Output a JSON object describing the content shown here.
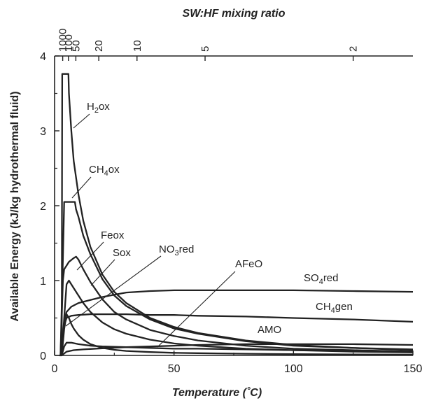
{
  "chart_data": {
    "type": "line",
    "xlabel": "Temperature (˚C)",
    "ylabel": "Available Energy (kJ/kg hydrothermal fluid)",
    "top_axis_label": "SW:HF mixing ratio",
    "xlim": [
      0,
      150
    ],
    "ylim": [
      0,
      4
    ],
    "x_ticks": [
      0,
      50,
      100,
      150
    ],
    "y_ticks": [
      0,
      1,
      2,
      3,
      4
    ],
    "top_ticks": [
      {
        "label": "1000",
        "temperature": 3.4
      },
      {
        "label": "100",
        "temperature": 5.8
      },
      {
        "label": "50",
        "temperature": 8.9
      },
      {
        "label": "20",
        "temperature": 18.5
      },
      {
        "label": "10",
        "temperature": 34.5
      },
      {
        "label": "5",
        "temperature": 63.0
      },
      {
        "label": "2",
        "temperature": 125.0
      }
    ],
    "grid": false,
    "series": [
      {
        "name": "H2ox",
        "x": [
          2,
          3,
          3.2,
          5.8,
          6,
          7,
          8,
          10,
          12,
          15,
          20,
          25,
          30,
          40,
          50,
          60,
          80,
          100,
          125,
          150
        ],
        "y": [
          0,
          0,
          3.76,
          3.76,
          3.5,
          3.0,
          2.6,
          2.15,
          1.8,
          1.45,
          1.08,
          0.85,
          0.7,
          0.5,
          0.38,
          0.3,
          0.2,
          0.14,
          0.1,
          0.08
        ]
      },
      {
        "name": "CH4ox",
        "x": [
          2.5,
          3.5,
          4,
          8.5,
          9,
          10,
          12,
          15,
          20,
          25,
          30,
          40,
          50,
          60,
          80,
          100,
          125,
          150
        ],
        "y": [
          0,
          1.3,
          2.05,
          2.05,
          1.95,
          1.85,
          1.6,
          1.35,
          1.02,
          0.8,
          0.66,
          0.48,
          0.36,
          0.29,
          0.19,
          0.13,
          0.1,
          0.07
        ]
      },
      {
        "name": "Feox",
        "x": [
          2.5,
          3.5,
          4,
          5,
          6,
          8,
          9,
          10,
          12,
          15,
          20,
          25,
          30,
          40,
          50,
          60,
          80,
          100,
          125,
          150
        ],
        "y": [
          0,
          1.0,
          1.15,
          1.2,
          1.25,
          1.3,
          1.32,
          1.28,
          1.15,
          0.98,
          0.75,
          0.58,
          0.48,
          0.34,
          0.26,
          0.2,
          0.13,
          0.09,
          0.07,
          0.05
        ]
      },
      {
        "name": "Sox",
        "x": [
          3,
          4,
          5,
          6,
          7,
          8,
          10,
          12,
          15,
          20,
          25,
          30,
          40,
          50,
          60,
          80,
          100,
          125,
          150
        ],
        "y": [
          0,
          0.5,
          0.95,
          1.0,
          0.95,
          0.9,
          0.8,
          0.7,
          0.58,
          0.44,
          0.35,
          0.29,
          0.21,
          0.16,
          0.13,
          0.09,
          0.07,
          0.05,
          0.04
        ]
      },
      {
        "name": "NO3red",
        "x": [
          3,
          4,
          5,
          6,
          7,
          8,
          10,
          12,
          15,
          20,
          25,
          30,
          40,
          50,
          60,
          80,
          100,
          125,
          150
        ],
        "y": [
          0,
          0.35,
          0.55,
          0.5,
          0.42,
          0.36,
          0.27,
          0.21,
          0.15,
          0.1,
          0.075,
          0.06,
          0.045,
          0.035,
          0.03,
          0.022,
          0.017,
          0.013,
          0.01
        ]
      },
      {
        "name": "AFeO",
        "x": [
          3,
          5,
          8,
          12,
          20,
          30,
          40,
          50,
          60,
          80,
          100,
          125,
          150
        ],
        "y": [
          0,
          0.05,
          0.07,
          0.08,
          0.095,
          0.11,
          0.12,
          0.13,
          0.14,
          0.15,
          0.15,
          0.15,
          0.14
        ]
      },
      {
        "name": "SO4red",
        "x": [
          3,
          4,
          5,
          7,
          10,
          15,
          20,
          25,
          30,
          40,
          50,
          60,
          80,
          100,
          125,
          150
        ],
        "y": [
          0,
          0.45,
          0.58,
          0.65,
          0.7,
          0.74,
          0.78,
          0.81,
          0.84,
          0.86,
          0.87,
          0.87,
          0.87,
          0.87,
          0.86,
          0.85
        ]
      },
      {
        "name": "CH4gen",
        "x": [
          3,
          4,
          5,
          7,
          10,
          15,
          20,
          30,
          40,
          50,
          60,
          80,
          100,
          125,
          150
        ],
        "y": [
          0,
          0.4,
          0.5,
          0.53,
          0.54,
          0.55,
          0.55,
          0.55,
          0.54,
          0.54,
          0.53,
          0.52,
          0.5,
          0.48,
          0.45
        ]
      },
      {
        "name": "AMO",
        "x": [
          3,
          4,
          5,
          7,
          10,
          15,
          20,
          30,
          40,
          50,
          60,
          80,
          100,
          125,
          150
        ],
        "y": [
          0,
          0.12,
          0.17,
          0.17,
          0.15,
          0.13,
          0.12,
          0.11,
          0.1,
          0.09,
          0.09,
          0.08,
          0.07,
          0.06,
          0.05
        ]
      }
    ],
    "annotations": [
      {
        "main": "H",
        "sub": "2",
        "rest": "ox"
      },
      {
        "main": "CH",
        "sub": "4",
        "rest": "ox"
      },
      {
        "main": "Feox",
        "sub": "",
        "rest": ""
      },
      {
        "main": "Sox",
        "sub": "",
        "rest": ""
      },
      {
        "main": "NO",
        "sub": "3",
        "rest": "red"
      },
      {
        "main": "AFeO",
        "sub": "",
        "rest": ""
      },
      {
        "main": "SO",
        "sub": "4",
        "rest": "red"
      },
      {
        "main": "CH",
        "sub": "4",
        "rest": "gen"
      },
      {
        "main": "AMO",
        "sub": "",
        "rest": ""
      }
    ]
  }
}
